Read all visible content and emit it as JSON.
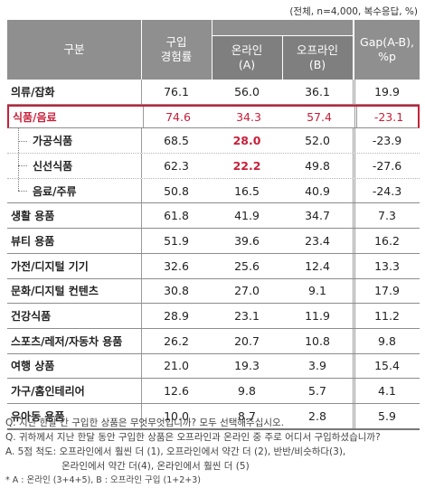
{
  "meta": "(전체, n=4,000, 복수응답, %)",
  "header": {
    "category": "구분",
    "experience": "구입\n경험률",
    "online": "온라인\n(A)",
    "offline": "오프라인\n(B)",
    "gap": "Gap(A-B),\n%p"
  },
  "rows": [
    {
      "label": "의류/잡화",
      "exp": "76.1",
      "online": "56.0",
      "offline": "36.1",
      "gap": "19.9"
    },
    {
      "label": "식품/음료",
      "exp": "74.6",
      "online": "34.3",
      "offline": "57.4",
      "gap": "-23.1"
    },
    {
      "label": "가공식품",
      "exp": "68.5",
      "online": "28.0",
      "offline": "52.0",
      "gap": "-23.9"
    },
    {
      "label": "신선식품",
      "exp": "62.3",
      "online": "22.2",
      "offline": "49.8",
      "gap": "-27.6"
    },
    {
      "label": "음료/주류",
      "exp": "50.8",
      "online": "16.5",
      "offline": "40.9",
      "gap": "-24.3"
    },
    {
      "label": "생활 용품",
      "exp": "61.8",
      "online": "41.9",
      "offline": "34.7",
      "gap": "7.3"
    },
    {
      "label": "뷰티 용품",
      "exp": "51.9",
      "online": "39.6",
      "offline": "23.4",
      "gap": "16.2"
    },
    {
      "label": "가전/디지털 기기",
      "exp": "32.6",
      "online": "25.6",
      "offline": "12.4",
      "gap": "13.3"
    },
    {
      "label": "문화/디지털 컨텐츠",
      "exp": "30.8",
      "online": "27.0",
      "offline": "9.1",
      "gap": "17.9"
    },
    {
      "label": "건강식품",
      "exp": "28.9",
      "online": "23.1",
      "offline": "11.9",
      "gap": "11.2"
    },
    {
      "label": "스포츠/레저/자동차 용품",
      "exp": "26.2",
      "online": "20.7",
      "offline": "10.8",
      "gap": "9.8"
    },
    {
      "label": "여행 상품",
      "exp": "21.0",
      "online": "19.3",
      "offline": "3.9",
      "gap": "15.4"
    },
    {
      "label": "가구/홈인테리어",
      "exp": "12.6",
      "online": "9.8",
      "offline": "5.7",
      "gap": "4.1"
    },
    {
      "label": "유아동 용품",
      "exp": "10.0",
      "online": "8.7",
      "offline": "2.8",
      "gap": "5.9"
    }
  ],
  "notes": {
    "q1": "Q. 지난 한달 간 구입한 상품은 무엇무엇입니까? 모두 선택해주십시오.",
    "q2": "Q. 귀하께서 지난 한달 동안 구입한 상품은 오프라인과 온라인 중 주로 어디서 구입하셨습니까?",
    "scale1": "A. 5점 척도: 오프라인에서 훨씬 더 (1), 오프라인에서 약간 더 (2), 반반/비슷하다(3),",
    "scale2": "온라인에서 약간 더(4), 온라인에서 훨씬 더 (5)",
    "footnote": "* A : 온라인 (3+4+5), B : 오프라인 구입 (1+2+3)"
  },
  "colors": {
    "header": "#8f8f8f",
    "header_sub": "#7f7f7f",
    "highlight": "#c7203a"
  }
}
